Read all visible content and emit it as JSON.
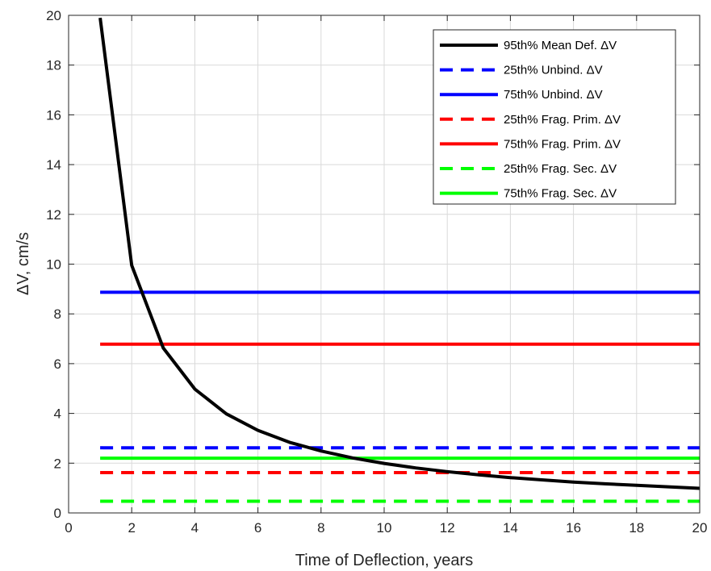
{
  "chart_data": {
    "type": "line",
    "title": "",
    "xlabel": "Time of Deflection, years",
    "ylabel": "ΔV, cm/s",
    "xlim": [
      0,
      20
    ],
    "ylim": [
      0,
      20
    ],
    "xticks": [
      0,
      2,
      4,
      6,
      8,
      10,
      12,
      14,
      16,
      18,
      20
    ],
    "yticks": [
      0,
      2,
      4,
      6,
      8,
      10,
      12,
      14,
      16,
      18,
      20
    ],
    "grid": true,
    "legend_position": "top-right",
    "series": [
      {
        "name": "95th% Mean Def. ΔV",
        "color": "#000000",
        "style": "solid",
        "x": [
          1,
          2,
          3,
          4,
          5,
          6,
          7,
          8,
          9,
          10,
          11,
          12,
          13,
          14,
          15,
          16,
          17,
          18,
          19,
          20
        ],
        "y": [
          19.9,
          9.95,
          6.63,
          4.98,
          3.98,
          3.32,
          2.84,
          2.49,
          2.21,
          1.99,
          1.81,
          1.66,
          1.53,
          1.42,
          1.33,
          1.24,
          1.17,
          1.11,
          1.05,
          0.99
        ]
      },
      {
        "name": "25th% Unbind. ΔV",
        "color": "#0000ff",
        "style": "dashed",
        "x": [
          1,
          20
        ],
        "y": [
          2.62,
          2.62
        ]
      },
      {
        "name": "75th% Unbind. ΔV",
        "color": "#0000ff",
        "style": "solid",
        "x": [
          1,
          20
        ],
        "y": [
          8.87,
          8.87
        ]
      },
      {
        "name": "25th% Frag. Prim. ΔV",
        "color": "#ff0000",
        "style": "dashed",
        "x": [
          1,
          20
        ],
        "y": [
          1.62,
          1.62
        ]
      },
      {
        "name": "75th% Frag. Prim. ΔV",
        "color": "#ff0000",
        "style": "solid",
        "x": [
          1,
          20
        ],
        "y": [
          6.78,
          6.78
        ]
      },
      {
        "name": "25th% Frag. Sec. ΔV",
        "color": "#00ff00",
        "style": "dashed",
        "x": [
          1,
          20
        ],
        "y": [
          0.47,
          0.47
        ]
      },
      {
        "name": "75th% Frag. Sec. ΔV",
        "color": "#00ff00",
        "style": "solid",
        "x": [
          1,
          20
        ],
        "y": [
          2.2,
          2.2
        ]
      }
    ]
  }
}
